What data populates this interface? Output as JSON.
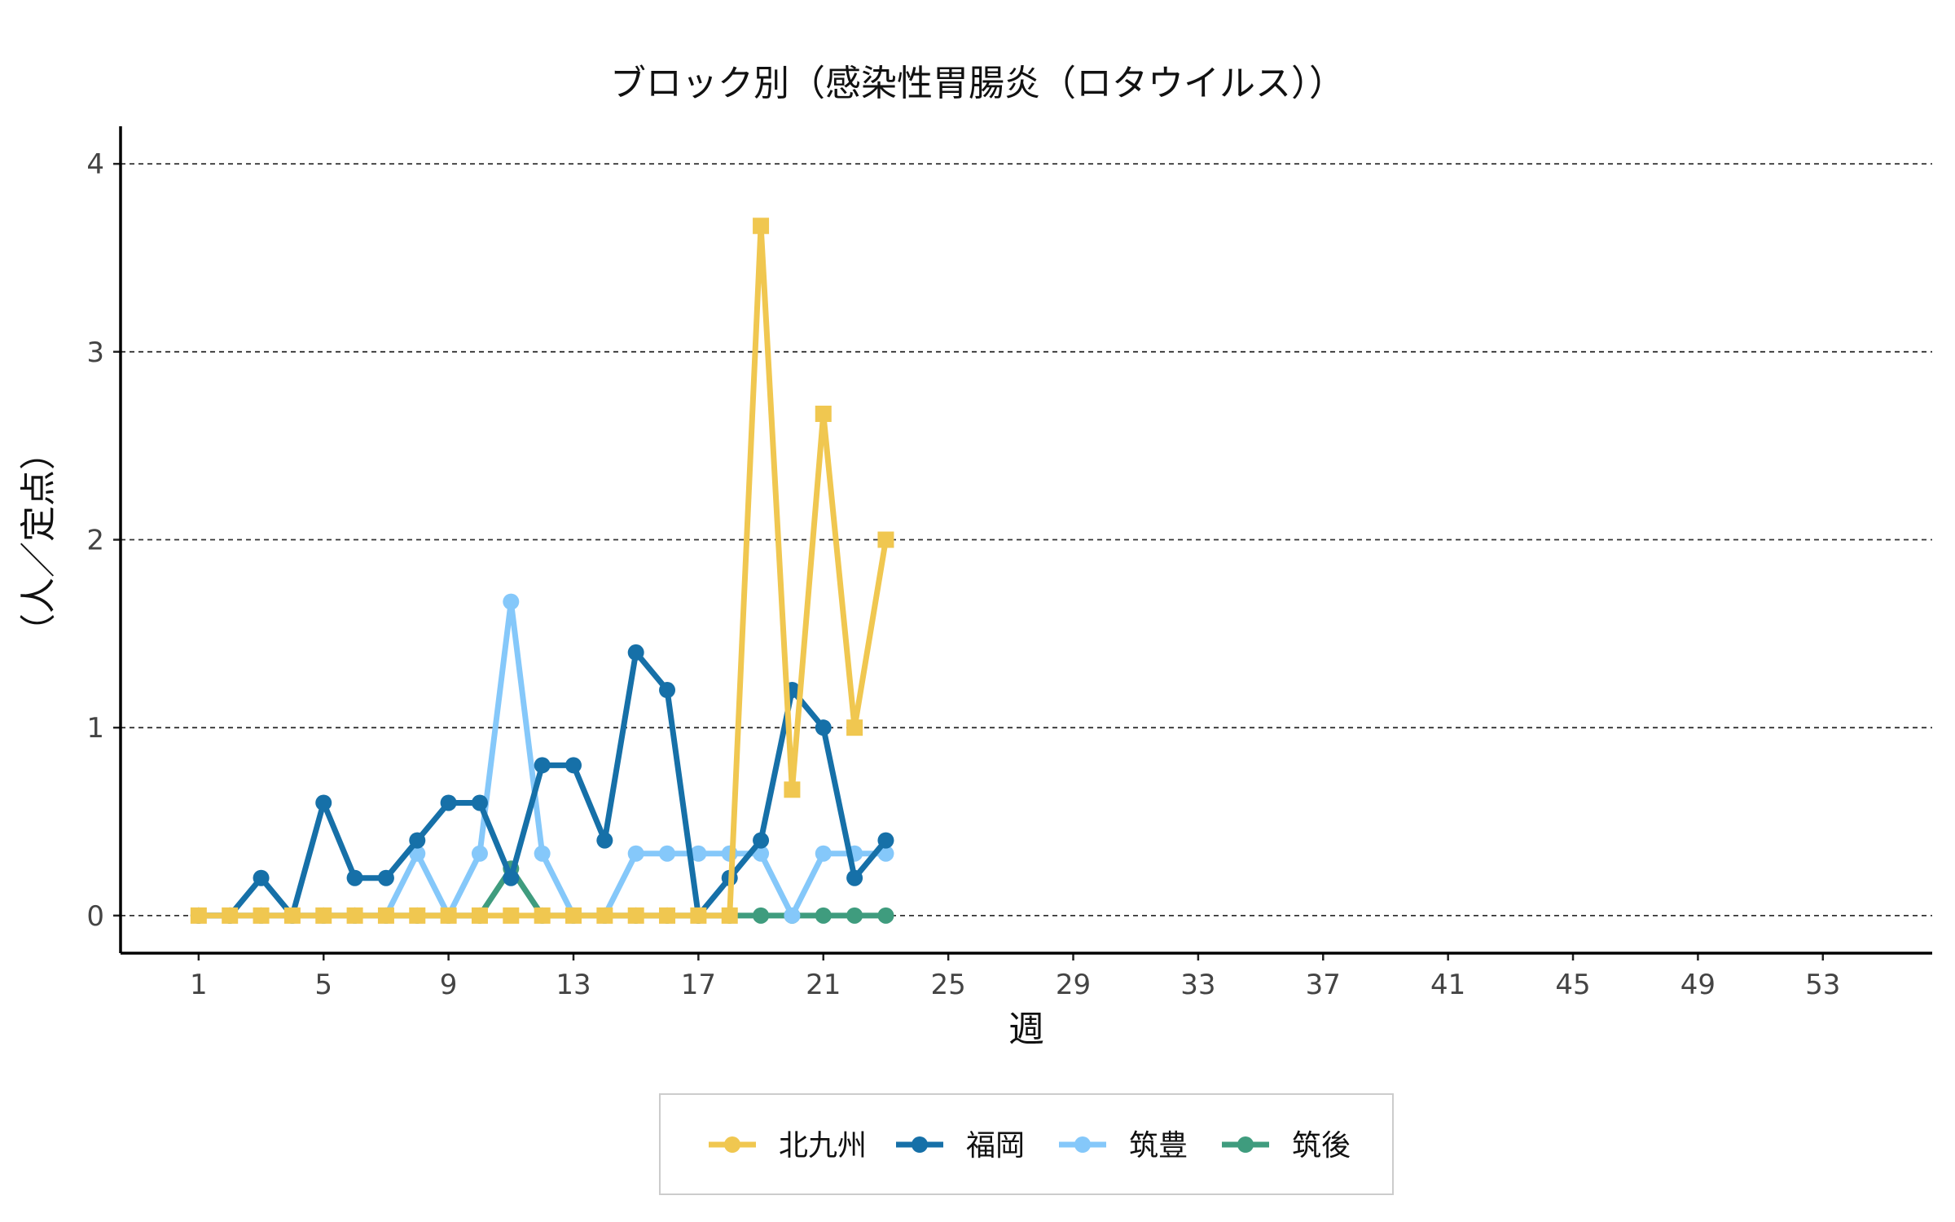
{
  "chart_data": {
    "type": "line",
    "title": "ブロック別（感染性胃腸炎（ロタウイルス））",
    "xlabel": "週",
    "ylabel": "（人／定点）",
    "xlim": [
      -1.5,
      56.5
    ],
    "ylim": [
      -0.2,
      4.2
    ],
    "x_ticks": [
      1,
      5,
      9,
      13,
      17,
      21,
      25,
      29,
      33,
      37,
      41,
      45,
      49,
      53
    ],
    "y_ticks": [
      0,
      1,
      2,
      3,
      4
    ],
    "grid": "horizontal dashed",
    "legend_position": "bottom",
    "x": [
      1,
      2,
      3,
      4,
      5,
      6,
      7,
      8,
      9,
      10,
      11,
      12,
      13,
      14,
      15,
      16,
      17,
      18,
      19,
      20,
      21,
      22,
      23
    ],
    "series": [
      {
        "name": "北九州",
        "color": "#f0c750",
        "marker": "square",
        "values": [
          0,
          0,
          0,
          0,
          0,
          0,
          0,
          0,
          0,
          0,
          0,
          0,
          0,
          0,
          0,
          0,
          0,
          0,
          3.67,
          0.67,
          2.67,
          1,
          2
        ]
      },
      {
        "name": "福岡",
        "color": "#1670a8",
        "marker": "circle",
        "values": [
          0,
          0,
          0.2,
          0,
          0.6,
          0.2,
          0.2,
          0.4,
          0.6,
          0.6,
          0.2,
          0.8,
          0.8,
          0.4,
          1.4,
          1.2,
          0,
          0.2,
          0.4,
          1.2,
          1,
          0.2,
          0.4
        ]
      },
      {
        "name": "筑豊",
        "color": "#85c8fa",
        "marker": "circle",
        "values": [
          0,
          0,
          0,
          0,
          0,
          0,
          0,
          0.33,
          0,
          0.33,
          1.67,
          0.33,
          0,
          0,
          0.33,
          0.33,
          0.33,
          0.33,
          0.33,
          0,
          0.33,
          0.33,
          0.33
        ]
      },
      {
        "name": "筑後",
        "color": "#3f9c7e",
        "marker": "circle",
        "values": [
          0,
          0,
          0,
          0,
          0,
          0,
          0,
          0,
          0,
          0,
          0.25,
          0,
          0,
          0,
          0,
          0,
          0,
          0,
          0,
          0,
          0,
          0,
          0
        ]
      }
    ]
  }
}
